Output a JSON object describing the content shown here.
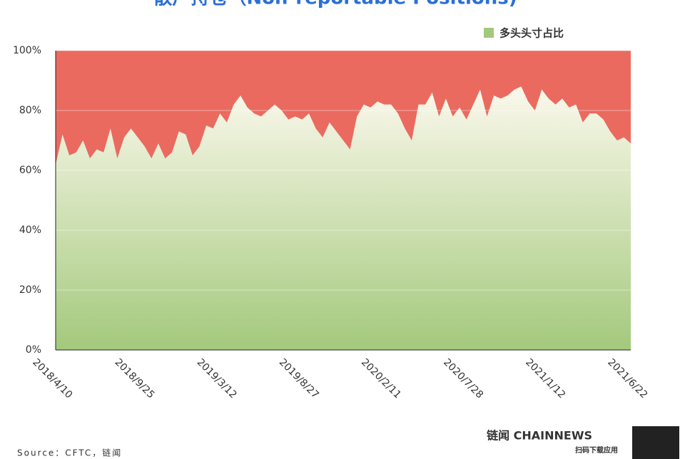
{
  "title": "散户持仓（Non-reportable Positions)",
  "chart_data": {
    "type": "area",
    "categories": [
      "2018/4/10",
      null,
      null,
      null,
      null,
      null,
      null,
      null,
      null,
      null,
      null,
      null,
      "2018/9/25",
      null,
      null,
      null,
      null,
      null,
      null,
      null,
      null,
      null,
      null,
      null,
      "2019/3/12",
      null,
      null,
      null,
      null,
      null,
      null,
      null,
      null,
      null,
      null,
      null,
      "2019/8/27",
      null,
      null,
      null,
      null,
      null,
      null,
      null,
      null,
      null,
      null,
      null,
      "2020/2/11",
      null,
      null,
      null,
      null,
      null,
      null,
      null,
      null,
      null,
      null,
      null,
      "2020/7/28",
      null,
      null,
      null,
      null,
      null,
      null,
      null,
      null,
      null,
      null,
      null,
      "2021/1/12",
      null,
      null,
      null,
      null,
      null,
      null,
      null,
      null,
      null,
      null,
      null,
      "2021/6/22"
    ],
    "series": [
      {
        "name": "多头头寸占比",
        "color": "#a3c97c",
        "values": [
          62,
          72,
          65,
          66,
          70,
          64,
          67,
          66,
          74,
          64,
          71,
          74,
          71,
          68,
          64,
          69,
          64,
          66,
          73,
          72,
          65,
          68,
          75,
          74,
          79,
          76,
          82,
          85,
          81,
          79,
          78,
          80,
          82,
          80,
          77,
          78,
          77,
          79,
          74,
          71,
          76,
          73,
          70,
          67,
          78,
          82,
          81,
          83,
          82,
          82,
          79,
          74,
          70,
          82,
          82,
          86,
          78,
          84,
          78,
          81,
          77,
          82,
          87,
          78,
          85,
          84,
          85,
          87,
          88,
          83,
          80,
          87,
          84,
          82,
          84,
          81,
          82,
          76,
          79,
          79,
          77,
          73,
          70,
          71,
          69
        ]
      }
    ],
    "remainder_color": "#ea6a60",
    "ylim": [
      0,
      100
    ],
    "yticks": [
      {
        "value": 0,
        "label": "0%"
      },
      {
        "value": 20,
        "label": "20%"
      },
      {
        "value": 40,
        "label": "40%"
      },
      {
        "value": 60,
        "label": "60%"
      },
      {
        "value": 80,
        "label": "80%"
      },
      {
        "value": 100,
        "label": "100%"
      }
    ],
    "grid": true,
    "legend": "top-right"
  },
  "footer": {
    "source": "Source：CFTC，链闻",
    "brand": "链闻 CHAINNEWS",
    "cta": "扫码下载应用"
  }
}
